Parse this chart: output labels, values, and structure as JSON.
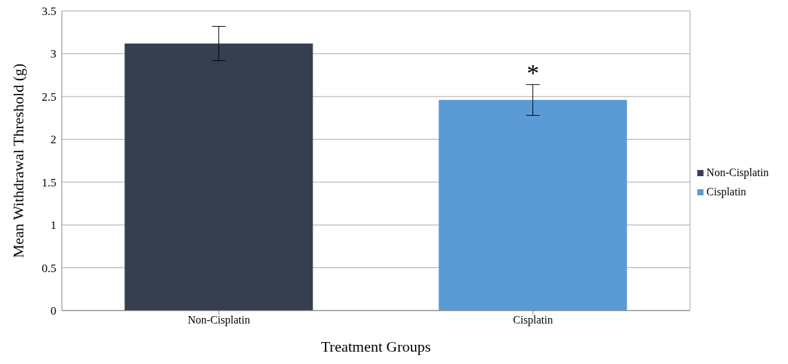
{
  "chart_data": {
    "type": "bar",
    "xlabel": "Treatment Groups",
    "ylabel": "Mean Withdrawal Threshold (g)",
    "categories": [
      "Non-Cisplatin",
      "Cisplatin"
    ],
    "series": [
      {
        "name": "Non-Cisplatin",
        "color": "#353f50",
        "values": [
          3.12,
          null
        ],
        "errors": [
          0.2,
          null
        ]
      },
      {
        "name": "Cisplatin",
        "color": "#5b9bd5",
        "values": [
          null,
          2.46
        ],
        "errors": [
          null,
          0.18
        ]
      }
    ],
    "ylim": [
      0,
      3.5
    ],
    "yticks": [
      0,
      0.5,
      1,
      1.5,
      2,
      2.5,
      3,
      3.5
    ],
    "grid": "y",
    "legend": "right",
    "annotations": [
      "*"
    ]
  }
}
